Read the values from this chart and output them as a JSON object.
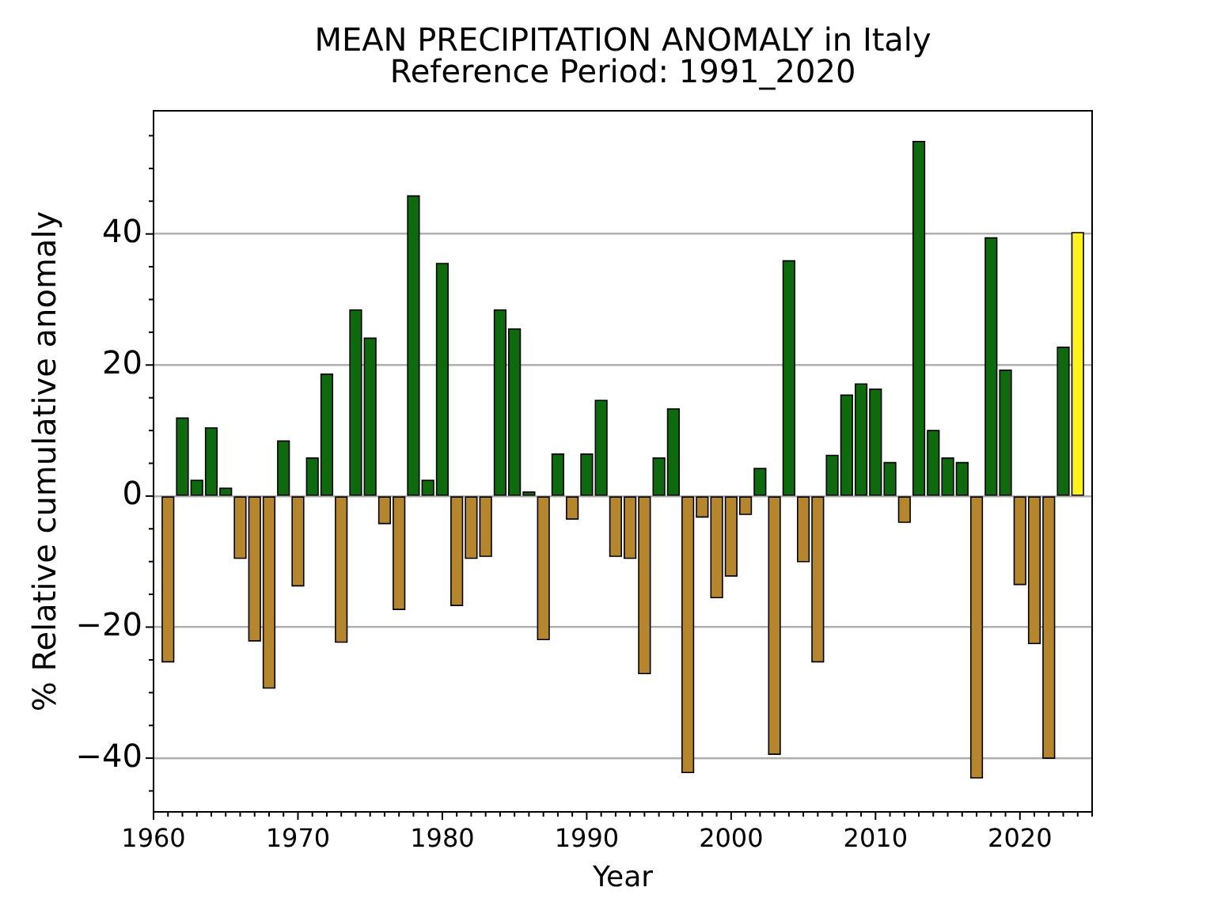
{
  "chart_data": {
    "type": "bar",
    "title": "MEAN PRECIPITATION ANOMALY in Italy",
    "subtitle": "Reference Period: 1991_2020",
    "xlabel": "Year",
    "ylabel": "% Relative cumulative anomaly",
    "x": [
      1961,
      1962,
      1963,
      1964,
      1965,
      1966,
      1967,
      1968,
      1969,
      1970,
      1971,
      1972,
      1973,
      1974,
      1975,
      1976,
      1977,
      1978,
      1979,
      1980,
      1981,
      1982,
      1983,
      1984,
      1985,
      1986,
      1987,
      1988,
      1989,
      1990,
      1991,
      1992,
      1993,
      1994,
      1995,
      1996,
      1997,
      1998,
      1999,
      2000,
      2001,
      2002,
      2003,
      2004,
      2005,
      2006,
      2007,
      2008,
      2009,
      2010,
      2011,
      2012,
      2013,
      2014,
      2015,
      2016,
      2017,
      2018,
      2019,
      2020,
      2021,
      2022,
      2023,
      2024
    ],
    "values": [
      -25.3,
      11.9,
      2.4,
      10.4,
      1.2,
      -9.5,
      -22.1,
      -29.3,
      8.4,
      -13.7,
      5.8,
      18.6,
      -22.3,
      28.4,
      24.1,
      -4.2,
      -17.3,
      45.8,
      2.4,
      35.5,
      -16.7,
      -9.5,
      -9.2,
      28.4,
      25.5,
      0.6,
      -21.9,
      6.4,
      -3.5,
      6.4,
      14.6,
      -9.2,
      -9.5,
      -27.1,
      5.8,
      13.3,
      -42.2,
      -3.2,
      -15.5,
      -12.2,
      -2.8,
      4.2,
      -39.4,
      35.9,
      -10.0,
      -25.3,
      6.2,
      15.4,
      17.1,
      16.3,
      5.1,
      -4.0,
      54.1,
      10.0,
      5.8,
      5.1,
      -43.0,
      39.4,
      19.2,
      -13.5,
      -22.5,
      -40.0,
      22.7,
      40.2
    ],
    "colors": [
      "#b5862b",
      "#0d6b0d",
      "#0d6b0d",
      "#0d6b0d",
      "#0d6b0d",
      "#b5862b",
      "#b5862b",
      "#b5862b",
      "#0d6b0d",
      "#b5862b",
      "#0d6b0d",
      "#0d6b0d",
      "#b5862b",
      "#0d6b0d",
      "#0d6b0d",
      "#b5862b",
      "#b5862b",
      "#0d6b0d",
      "#0d6b0d",
      "#0d6b0d",
      "#b5862b",
      "#b5862b",
      "#b5862b",
      "#0d6b0d",
      "#0d6b0d",
      "#0d6b0d",
      "#b5862b",
      "#0d6b0d",
      "#b5862b",
      "#0d6b0d",
      "#0d6b0d",
      "#b5862b",
      "#b5862b",
      "#b5862b",
      "#0d6b0d",
      "#0d6b0d",
      "#b5862b",
      "#b5862b",
      "#b5862b",
      "#b5862b",
      "#b5862b",
      "#0d6b0d",
      "#b5862b",
      "#0d6b0d",
      "#b5862b",
      "#b5862b",
      "#0d6b0d",
      "#0d6b0d",
      "#0d6b0d",
      "#0d6b0d",
      "#0d6b0d",
      "#b5862b",
      "#0d6b0d",
      "#0d6b0d",
      "#0d6b0d",
      "#0d6b0d",
      "#b5862b",
      "#0d6b0d",
      "#0d6b0d",
      "#b5862b",
      "#b5862b",
      "#b5862b",
      "#0d6b0d",
      "#fff21c"
    ],
    "xlim": [
      1960,
      2025
    ],
    "xticks": [
      1960,
      {
        "value": 1961,
        "label": null
      },
      {
        "value": 1962,
        "label": null
      },
      {
        "value": 1963,
        "label": null
      },
      {
        "value": 1964,
        "label": null
      },
      {
        "value": 1965,
        "label": null
      },
      {
        "value": 1966,
        "label": null
      },
      {
        "value": 1967,
        "label": null
      },
      {
        "value": 1968,
        "label": null
      },
      {
        "value": 1969,
        "label": null
      },
      1970,
      {
        "value": 1971,
        "label": null
      },
      {
        "value": 1972,
        "label": null
      },
      {
        "value": 1973,
        "label": null
      },
      {
        "value": 1974,
        "label": null
      },
      {
        "value": 1975,
        "label": null
      },
      {
        "value": 1976,
        "label": null
      },
      {
        "value": 1977,
        "label": null
      },
      {
        "value": 1978,
        "label": null
      },
      {
        "value": 1979,
        "label": null
      },
      1980,
      {
        "value": 1981,
        "label": null
      },
      {
        "value": 1982,
        "label": null
      },
      {
        "value": 1983,
        "label": null
      },
      {
        "value": 1984,
        "label": null
      },
      {
        "value": 1985,
        "label": null
      },
      {
        "value": 1986,
        "label": null
      },
      {
        "value": 1987,
        "label": null
      },
      {
        "value": 1988,
        "label": null
      },
      {
        "value": 1989,
        "label": null
      },
      1990,
      {
        "value": 1991,
        "label": null
      },
      {
        "value": 1992,
        "label": null
      },
      {
        "value": 1993,
        "label": null
      },
      {
        "value": 1994,
        "label": null
      },
      {
        "value": 1995,
        "label": null
      },
      {
        "value": 1996,
        "label": null
      },
      {
        "value": 1997,
        "label": null
      },
      {
        "value": 1998,
        "label": null
      },
      {
        "value": 1999,
        "label": null
      },
      2000,
      {
        "value": 2001,
        "label": null
      },
      {
        "value": 2002,
        "label": null
      },
      {
        "value": 2003,
        "label": null
      },
      {
        "value": 2004,
        "label": null
      },
      {
        "value": 2005,
        "label": null
      },
      {
        "value": 2006,
        "label": null
      },
      {
        "value": 2007,
        "label": null
      },
      {
        "value": 2008,
        "label": null
      },
      {
        "value": 2009,
        "label": null
      },
      2010,
      {
        "value": 2011,
        "label": null
      },
      {
        "value": 2012,
        "label": null
      },
      {
        "value": 2013,
        "label": null
      },
      {
        "value": 2014,
        "label": null
      },
      {
        "value": 2015,
        "label": null
      },
      {
        "value": 2016,
        "label": null
      },
      {
        "value": 2017,
        "label": null
      },
      {
        "value": 2018,
        "label": null
      },
      {
        "value": 2019,
        "label": null
      },
      2020,
      {
        "value": 2021,
        "label": null
      },
      {
        "value": 2022,
        "label": null
      },
      {
        "value": 2023,
        "label": null
      },
      {
        "value": 2024,
        "label": null
      },
      {
        "value": 2025,
        "label": null
      }
    ],
    "ylim": [
      -48.2,
      58.8
    ],
    "yticks": [
      {
        "value": -45,
        "label": null
      },
      {
        "value": -40,
        "label": "−40"
      },
      {
        "value": -35,
        "label": null
      },
      {
        "value": -30,
        "label": null
      },
      {
        "value": -25,
        "label": null
      },
      {
        "value": -20,
        "label": "−20"
      },
      {
        "value": -15,
        "label": null
      },
      {
        "value": -10,
        "label": null
      },
      {
        "value": -5,
        "label": null
      },
      0,
      {
        "value": 5,
        "label": null
      },
      {
        "value": 10,
        "label": null
      },
      {
        "value": 15,
        "label": null
      },
      20,
      {
        "value": 25,
        "label": null
      },
      {
        "value": 30,
        "label": null
      },
      {
        "value": 35,
        "label": null
      },
      40,
      {
        "value": 45,
        "label": null
      },
      {
        "value": 50,
        "label": null
      },
      {
        "value": 55,
        "label": null
      }
    ],
    "grid": "y"
  }
}
